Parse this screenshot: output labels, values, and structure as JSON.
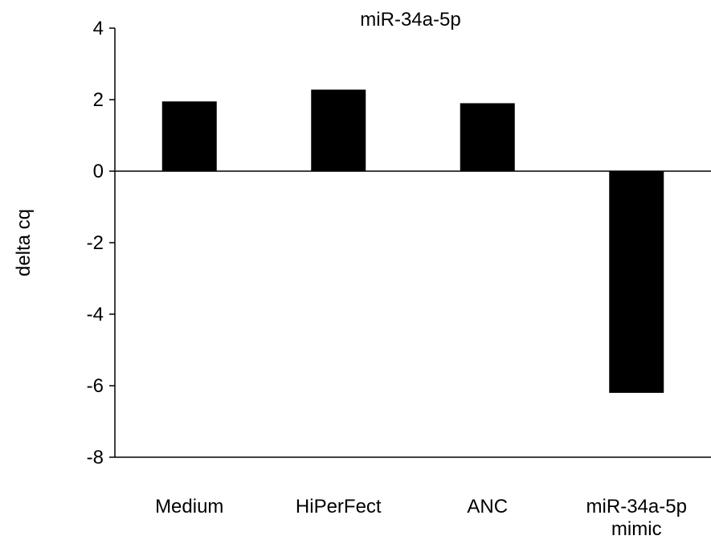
{
  "chart_data": {
    "type": "bar",
    "title": "miR-34a-5p",
    "xlabel": "",
    "ylabel": "delta cq",
    "categories": [
      [
        "Medium"
      ],
      [
        "HiPerFect"
      ],
      [
        "ANC"
      ],
      [
        "miR-34a-5p",
        "mimic"
      ]
    ],
    "values": [
      1.95,
      2.28,
      1.9,
      -6.2
    ],
    "ylim": [
      -8,
      4
    ],
    "yticks": [
      4,
      2,
      0,
      -2,
      -4,
      -6,
      -8
    ],
    "ytick_labels": [
      "4",
      "2",
      "0",
      "-2",
      "-4",
      "-6",
      "-8"
    ],
    "grid": false,
    "legend": "none",
    "bar_color": "#000000"
  }
}
